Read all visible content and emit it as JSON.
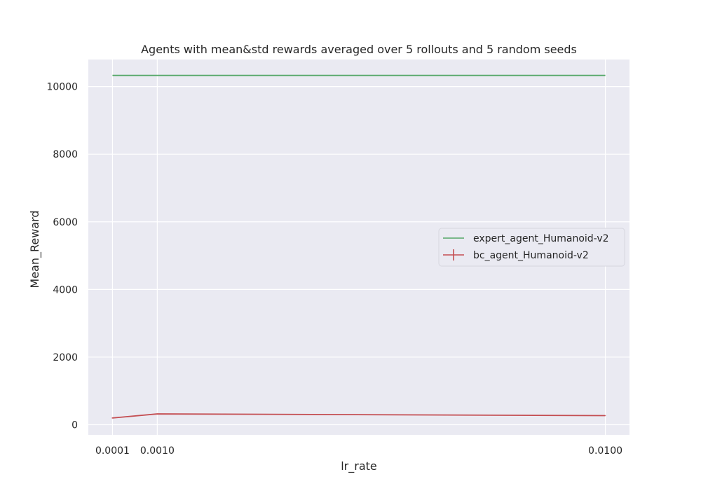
{
  "chart_data": {
    "type": "line",
    "title": "Agents with mean&std rewards averaged over 5 rollouts and 5 random seeds",
    "xlabel": "lr_rate",
    "ylabel": "Mean_Reward",
    "x": [
      0.0001,
      0.001,
      0.01
    ],
    "x_tick_labels": [
      "0.0001",
      "0.0010",
      "0.0100"
    ],
    "y_ticks": [
      0,
      2000,
      4000,
      6000,
      8000,
      10000
    ],
    "y_tick_labels": [
      "0",
      "2000",
      "4000",
      "6000",
      "8000",
      "10000"
    ],
    "xlim": [
      -0.000385,
      0.010485
    ],
    "ylim": [
      -300,
      10800
    ],
    "grid": true,
    "legend_position": "center-right",
    "series": [
      {
        "name": "expert_agent_Humanoid-v2",
        "values": [
          10330,
          10330,
          10330
        ],
        "color": "#55a868",
        "error_bars": false
      },
      {
        "name": "bc_agent_Humanoid-v2",
        "values": [
          200,
          320,
          270
        ],
        "errors": [
          15,
          5,
          5
        ],
        "color": "#c44e52",
        "error_bars": true
      }
    ],
    "background_color": "#eaeaf2",
    "grid_color": "#ffffff"
  }
}
